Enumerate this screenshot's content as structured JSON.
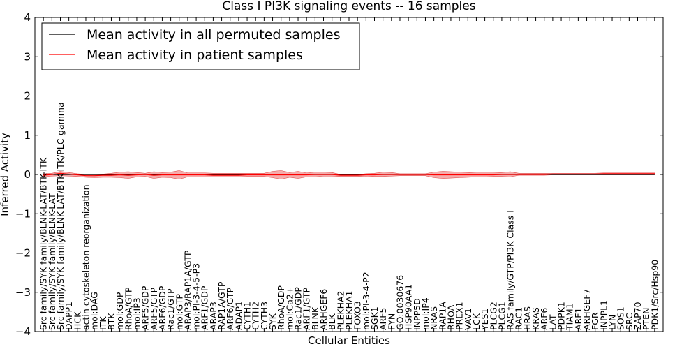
{
  "chart_data": {
    "type": "line",
    "title": "Class I PI3K signaling events -- 16 samples",
    "xlabel": "Cellular Entities",
    "ylabel": "Inferred Activity",
    "ylim": [
      -4,
      4
    ],
    "yticks": [
      "−4",
      "−3",
      "−2",
      "−1",
      "0",
      "1",
      "2",
      "3",
      "4"
    ],
    "grid": false,
    "legend_position": "top-left",
    "colors": {
      "permuted": "#000000",
      "patient": "#ff0000",
      "band": "#f08080",
      "axes": "#000000"
    },
    "categories": [
      "Src family/SYK family/BLNK-LAT/BTK-ITK",
      "Src family/SYK family/BLNK-LAT",
      "Src family/SYK family/BLNK-LAT/BTK-ITK/PLC-gamma",
      "DAPP1",
      "HCK",
      "actin cytoskeleton reorganization",
      "mol:DAG",
      "ITK",
      "BTK",
      "mol:GDP",
      "RhoA/GTP",
      "mol:IP3",
      "ARF5/GDP",
      "ARF5/GTP",
      "ARF6/GDP",
      "Rac1/GTP",
      "mol:GTP",
      "ARAP3/RAP1A/GTP",
      "mol:PI-3-4-5-P3",
      "ARF1/GDP",
      "ARAP3",
      "RAP1A/GTP",
      "ARF6/GTP",
      "ADAP1",
      "CYTH1",
      "CYTH2",
      "CYTH3",
      "SYK",
      "RhoA/GDP",
      "mol:Ca2+",
      "Rac1/GDP",
      "ARF1/GTP",
      "BLNK",
      "ARHGEF6",
      "BLK",
      "PLEKHA2",
      "PLEKHA1",
      "FOXO3",
      "mol:PI-3-4-P2",
      "SGK1",
      "ARF5",
      "FYN",
      "GO:0030676",
      "HSP90AA1",
      "INPP5D",
      "mol:IP4",
      "NRAS",
      "RAP1A",
      "RHOA",
      "PREX1",
      "VAV1",
      "LCK",
      "YES1",
      "PLCG2",
      "PLCG1",
      "RAS family/GTP/PI3K Class I",
      "RAC1",
      "HRAS",
      "KRAS",
      "ARF6",
      "LAT",
      "PDPK1",
      "TIAM1",
      "ARF1",
      "ARHGEF7",
      "FGR",
      "INPPL1",
      "LYN",
      "SOS1",
      "SRC",
      "ZAP70",
      "PTEN",
      "PDK1/Src/Hsp90"
    ],
    "series": [
      {
        "name": "Mean activity in all permuted samples",
        "values": [
          0.0,
          0.0,
          0.0,
          0.0,
          0.0,
          0.0,
          0.0,
          0.0,
          0.0,
          0.0,
          0.0,
          0.0,
          0.0,
          0.0,
          0.0,
          0.0,
          0.0,
          0.0,
          0.0,
          0.0,
          0.0,
          0.0,
          0.0,
          0.0,
          0.0,
          0.0,
          0.0,
          0.0,
          0.0,
          0.0,
          0.0,
          0.0,
          0.0,
          0.0,
          0.0,
          0.0,
          0.0,
          0.0,
          0.0,
          0.0,
          0.0,
          0.0,
          0.0,
          0.0,
          0.0,
          0.0,
          0.0,
          0.0,
          0.0,
          0.0,
          0.0,
          0.0,
          0.0,
          0.0,
          0.0,
          0.0,
          0.0,
          0.0,
          0.0,
          0.0,
          0.0,
          0.0,
          0.0,
          0.0,
          0.0,
          0.0,
          0.0,
          0.0,
          0.0,
          0.0,
          0.0,
          0.0,
          0.0
        ]
      },
      {
        "name": "Mean activity in patient samples",
        "values": [
          -0.02,
          0.0,
          0.03,
          0.01,
          -0.01,
          -0.03,
          -0.03,
          -0.02,
          -0.02,
          -0.01,
          -0.02,
          -0.01,
          0.0,
          -0.02,
          -0.01,
          -0.01,
          -0.01,
          -0.01,
          -0.01,
          -0.01,
          -0.02,
          -0.02,
          -0.02,
          -0.02,
          -0.01,
          -0.01,
          -0.01,
          -0.01,
          -0.01,
          -0.01,
          -0.01,
          -0.01,
          0.0,
          0.0,
          0.0,
          -0.02,
          -0.02,
          -0.02,
          -0.01,
          -0.01,
          0.0,
          0.0,
          0.0,
          0.0,
          0.0,
          0.0,
          -0.01,
          -0.01,
          -0.01,
          -0.01,
          -0.01,
          -0.01,
          -0.01,
          -0.01,
          0.0,
          0.0,
          0.0,
          0.0,
          0.0,
          0.0,
          0.01,
          0.01,
          0.01,
          0.01,
          0.01,
          0.01,
          0.02,
          0.02,
          0.02,
          0.02,
          0.02,
          0.02,
          0.02
        ]
      }
    ],
    "band_upper": [
      0.02,
      0.03,
      0.08,
      0.05,
      0.02,
      0.0,
      0.0,
      0.01,
      0.03,
      0.06,
      0.07,
      0.05,
      0.03,
      0.07,
      0.05,
      0.06,
      0.1,
      0.04,
      0.04,
      0.04,
      0.03,
      0.03,
      0.03,
      0.03,
      0.03,
      0.03,
      0.03,
      0.08,
      0.1,
      0.05,
      0.08,
      0.04,
      0.06,
      0.06,
      0.05,
      0.0,
      0.0,
      0.0,
      0.02,
      0.03,
      0.06,
      0.05,
      0.02,
      0.02,
      0.02,
      0.02,
      0.06,
      0.08,
      0.07,
      0.06,
      0.05,
      0.04,
      0.04,
      0.04,
      0.05,
      0.07,
      0.03,
      0.03,
      0.03,
      0.03,
      0.03,
      0.03,
      0.03,
      0.03,
      0.03,
      0.03,
      0.04,
      0.04,
      0.04,
      0.04,
      0.04,
      0.04,
      0.04
    ],
    "band_lower": [
      -0.06,
      -0.04,
      -0.03,
      -0.04,
      -0.05,
      -0.07,
      -0.08,
      -0.07,
      -0.07,
      -0.08,
      -0.1,
      -0.06,
      -0.05,
      -0.1,
      -0.07,
      -0.08,
      -0.12,
      -0.06,
      -0.06,
      -0.06,
      -0.06,
      -0.06,
      -0.06,
      -0.06,
      -0.05,
      -0.05,
      -0.05,
      -0.08,
      -0.12,
      -0.07,
      -0.1,
      -0.06,
      -0.06,
      -0.04,
      -0.04,
      -0.05,
      -0.05,
      -0.05,
      -0.04,
      -0.05,
      -0.05,
      -0.04,
      -0.03,
      -0.03,
      -0.03,
      -0.03,
      -0.08,
      -0.1,
      -0.09,
      -0.08,
      -0.07,
      -0.06,
      -0.06,
      -0.05,
      -0.05,
      -0.06,
      -0.02,
      -0.02,
      -0.02,
      -0.02,
      -0.01,
      -0.01,
      -0.01,
      -0.01,
      -0.01,
      -0.01,
      -0.01,
      -0.01,
      -0.01,
      -0.01,
      -0.01,
      -0.01,
      -0.01
    ]
  }
}
